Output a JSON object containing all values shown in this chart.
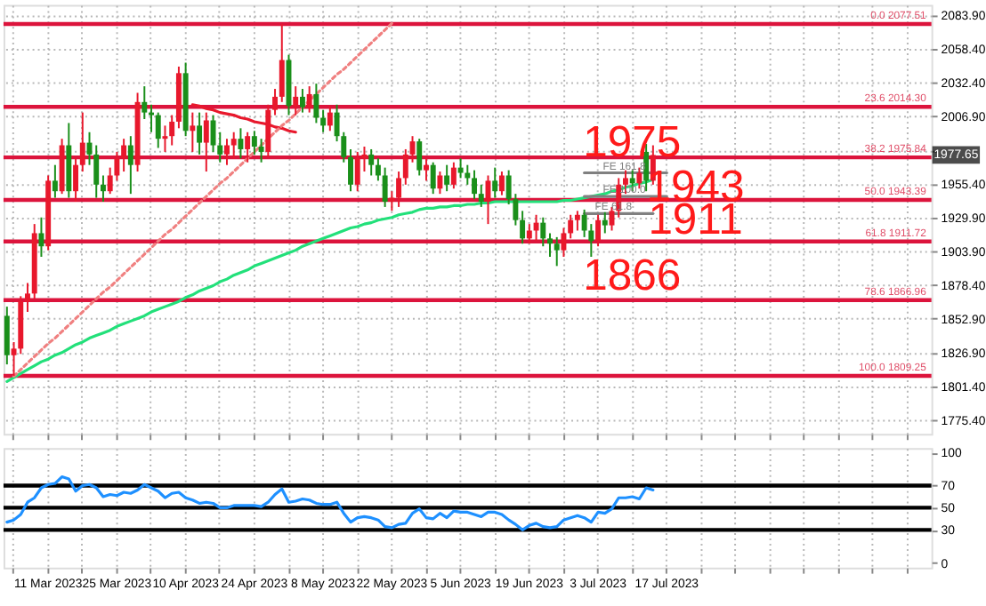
{
  "chart_data": [
    {
      "type": "candlestick",
      "tick_labels": "y",
      "grid": true,
      "categories": [
        null,
        null,
        null,
        null,
        null,
        null,
        null,
        null,
        null,
        null,
        null,
        null,
        null,
        null,
        null,
        null,
        null,
        null,
        null,
        null,
        null,
        null,
        null,
        null,
        null,
        null,
        null,
        null,
        null,
        null,
        null,
        null,
        null,
        null,
        null,
        null,
        null,
        null,
        null,
        null,
        null,
        null,
        null,
        null,
        null,
        null,
        null,
        null,
        null,
        null,
        null,
        null,
        null,
        null,
        null,
        null,
        null,
        null,
        null,
        null,
        null,
        null,
        null,
        null,
        null,
        null,
        null,
        null,
        null,
        null,
        null,
        null,
        null,
        null,
        null,
        null,
        null,
        null,
        null,
        null,
        null,
        null,
        null,
        null,
        null,
        null,
        null,
        null,
        null,
        null,
        null,
        null,
        null,
        null,
        null,
        null,
        null,
        null,
        null,
        null,
        null,
        null,
        null,
        null,
        null,
        null,
        null,
        null,
        null,
        null,
        null,
        null,
        null,
        null,
        null,
        null,
        null,
        null,
        null,
        null,
        null,
        null,
        null,
        null,
        null,
        null,
        null,
        null,
        null,
        null,
        null,
        null,
        null,
        null,
        null
      ],
      "ohlc": [
        [
          1855,
          1862,
          1818,
          1825
        ],
        [
          1825,
          1835,
          1809.25,
          1830
        ],
        [
          1830,
          1870,
          1826,
          1866
        ],
        [
          1866,
          1880,
          1858,
          1872
        ],
        [
          1872,
          1925,
          1868,
          1918
        ],
        [
          1918,
          1930,
          1900,
          1908
        ],
        [
          1908,
          1962,
          1905,
          1958
        ],
        [
          1958,
          1970,
          1945,
          1950
        ],
        [
          1950,
          1990,
          1948,
          1985
        ],
        [
          1985,
          2002,
          1945,
          1950
        ],
        [
          1950,
          1975,
          1942,
          1970
        ],
        [
          1970,
          2010,
          1965,
          1987
        ],
        [
          1987,
          1995,
          1970,
          1978
        ],
        [
          1978,
          1985,
          1945,
          1955
        ],
        [
          1955,
          1962,
          1942,
          1950
        ],
        [
          1950,
          1968,
          1948,
          1962
        ],
        [
          1962,
          1980,
          1958,
          1975
        ],
        [
          1975,
          1990,
          1965,
          1985
        ],
        [
          1985,
          1992,
          1948,
          1970
        ],
        [
          1970,
          2025,
          1965,
          2018
        ],
        [
          2018,
          2030,
          2005,
          2010
        ],
        [
          2010,
          2016,
          1995,
          2008
        ],
        [
          2008,
          2010,
          1983,
          1990
        ],
        [
          1990,
          2000,
          1980,
          1992
        ],
        [
          1992,
          2008,
          1985,
          2003
        ],
        [
          2003,
          2045,
          1998,
          2040
        ],
        [
          2040,
          2048,
          1992,
          1996
        ],
        [
          1996,
          2010,
          1980,
          2000
        ],
        [
          2000,
          2010,
          1978,
          1987
        ],
        [
          1987,
          2010,
          1965,
          2004
        ],
        [
          2004,
          2008,
          1980,
          1985
        ],
        [
          1985,
          1995,
          1972,
          1978
        ],
        [
          1978,
          1990,
          1970,
          1985
        ],
        [
          1985,
          1995,
          1975,
          1990
        ],
        [
          1990,
          1998,
          1975,
          1982
        ],
        [
          1982,
          1995,
          1972,
          1992
        ],
        [
          1992,
          1996,
          1978,
          1984
        ],
        [
          1984,
          1990,
          1972,
          1980
        ],
        [
          1980,
          2016,
          1976,
          2012
        ],
        [
          2012,
          2028,
          2008,
          2022
        ],
        [
          2022,
          2077.51,
          2018,
          2050
        ],
        [
          2050,
          2054,
          2008,
          2015
        ],
        [
          2015,
          2030,
          2008,
          2022
        ],
        [
          2022,
          2028,
          2010,
          2014
        ],
        [
          2014,
          2030,
          2010,
          2024
        ],
        [
          2024,
          2032,
          2002,
          2006
        ],
        [
          2006,
          2012,
          1995,
          2000
        ],
        [
          2000,
          2015,
          1996,
          2010
        ],
        [
          2010,
          2016,
          1988,
          1992
        ],
        [
          1992,
          1995,
          1972,
          1976
        ],
        [
          1976,
          1982,
          1950,
          1955
        ],
        [
          1955,
          1980,
          1950,
          1975
        ],
        [
          1975,
          1984,
          1965,
          1978
        ],
        [
          1978,
          1982,
          1962,
          1970
        ],
        [
          1970,
          1975,
          1958,
          1962
        ],
        [
          1962,
          1968,
          1938,
          1942
        ],
        [
          1942,
          1950,
          1935,
          1945
        ],
        [
          1945,
          1965,
          1938,
          1960
        ],
        [
          1960,
          1982,
          1955,
          1978
        ],
        [
          1978,
          1992,
          1972,
          1988
        ],
        [
          1988,
          1990,
          1962,
          1966
        ],
        [
          1966,
          1975,
          1958,
          1970
        ],
        [
          1970,
          1972,
          1948,
          1952
        ],
        [
          1952,
          1965,
          1948,
          1962
        ],
        [
          1962,
          1970,
          1950,
          1955
        ],
        [
          1955,
          1972,
          1952,
          1968
        ],
        [
          1968,
          1975,
          1960,
          1964
        ],
        [
          1964,
          1970,
          1955,
          1960
        ],
        [
          1960,
          1966,
          1944,
          1948
        ],
        [
          1948,
          1955,
          1938,
          1942
        ],
        [
          1942,
          1962,
          1925,
          1958
        ],
        [
          1958,
          1968,
          1945,
          1950
        ],
        [
          1950,
          1965,
          1947,
          1962
        ],
        [
          1962,
          1966,
          1940,
          1944
        ],
        [
          1944,
          1948,
          1924,
          1928
        ],
        [
          1928,
          1935,
          1910,
          1914
        ],
        [
          1914,
          1925,
          1910,
          1920
        ],
        [
          1920,
          1932,
          1912,
          1926
        ],
        [
          1926,
          1930,
          1908,
          1914
        ],
        [
          1914,
          1918,
          1900,
          1910
        ],
        [
          1910,
          1915,
          1893,
          1905
        ],
        [
          1905,
          1922,
          1900,
          1918
        ],
        [
          1918,
          1932,
          1914,
          1928
        ],
        [
          1928,
          1935,
          1920,
          1932
        ],
        [
          1932,
          1936,
          1915,
          1920
        ],
        [
          1920,
          1925,
          1900,
          1912
        ],
        [
          1912,
          1932,
          1908,
          1928
        ],
        [
          1928,
          1934,
          1918,
          1924
        ],
        [
          1924,
          1938,
          1920,
          1935
        ],
        [
          1935,
          1960,
          1930,
          1955
        ],
        [
          1955,
          1966,
          1948,
          1960
        ],
        [
          1960,
          1966,
          1950,
          1956
        ],
        [
          1956,
          1968,
          1952,
          1964
        ],
        [
          1980,
          1986,
          1950,
          1958
        ],
        [
          1958,
          1985,
          1955,
          1977.65
        ],
        null,
        null,
        null,
        null,
        null,
        null,
        null,
        null,
        null,
        null,
        null,
        null,
        null,
        null,
        null,
        null,
        null,
        null,
        null,
        null,
        null,
        null,
        null,
        null,
        null,
        null,
        null,
        null,
        null,
        null,
        null,
        null,
        null,
        null,
        null,
        null,
        null,
        null,
        null,
        null
      ],
      "colors": [
        "#1a8f1a",
        "#e8182c",
        "#e8182c",
        "#e8182c",
        "#e8182c",
        "#1a8f1a",
        "#e8182c",
        "#1a8f1a",
        "#e8182c",
        "#1a8f1a",
        "#e8182c",
        "#e8182c",
        "#1a8f1a",
        "#1a8f1a",
        "#1a8f1a",
        "#e8182c",
        "#e8182c",
        "#e8182c",
        "#1a8f1a",
        "#e8182c",
        "#1a8f1a",
        "#1a8f1a",
        "#1a8f1a",
        "#e8182c",
        "#e8182c",
        "#e8182c",
        "#1a8f1a",
        "#e8182c",
        "#1a8f1a",
        "#e8182c",
        "#1a8f1a",
        "#1a8f1a",
        "#e8182c",
        "#e8182c",
        "#1a8f1a",
        "#e8182c",
        "#1a8f1a",
        "#1a8f1a",
        "#e8182c",
        "#e8182c",
        "#e8182c",
        "#1a8f1a",
        "#e8182c",
        "#1a8f1a",
        "#e8182c",
        "#1a8f1a",
        "#1a8f1a",
        "#e8182c",
        "#1a8f1a",
        "#1a8f1a",
        "#1a8f1a",
        "#e8182c",
        "#e8182c",
        "#1a8f1a",
        "#1a8f1a",
        "#1a8f1a",
        "#e8182c",
        "#e8182c",
        "#e8182c",
        "#e8182c",
        "#1a8f1a",
        "#e8182c",
        "#1a8f1a",
        "#e8182c",
        "#1a8f1a",
        "#e8182c",
        "#1a8f1a",
        "#1a8f1a",
        "#1a8f1a",
        "#1a8f1a",
        "#e8182c",
        "#1a8f1a",
        "#e8182c",
        "#1a8f1a",
        "#1a8f1a",
        "#1a8f1a",
        "#e8182c",
        "#e8182c",
        "#1a8f1a",
        "#1a8f1a",
        "#1a8f1a",
        "#e8182c",
        "#e8182c",
        "#e8182c",
        "#1a8f1a",
        "#1a8f1a",
        "#e8182c",
        "#1a8f1a",
        "#e8182c",
        "#e8182c",
        "#e8182c",
        "#1a8f1a",
        "#e8182c",
        "#1a8f1a",
        "#e8182c",
        null,
        null,
        null,
        null,
        null,
        null,
        null,
        null,
        null,
        null,
        null,
        null,
        null,
        null,
        null,
        null,
        null,
        null,
        null,
        null,
        null,
        null,
        null,
        null,
        null,
        null,
        null,
        null,
        null,
        null,
        null,
        null,
        null,
        null,
        null,
        null,
        null,
        null,
        null,
        null
      ],
      "ylim": [
        1765,
        2092
      ],
      "yticks": [
        {
          "value": 2083.9,
          "label": "2083.90"
        },
        {
          "value": 2058.4,
          "label": "2058.40"
        },
        {
          "value": 2032.4,
          "label": "2032.40"
        },
        {
          "value": 2006.9,
          "label": "2006.90"
        },
        {
          "value": 1981.4,
          "label": null
        },
        {
          "value": 1955.4,
          "label": "1955.40"
        },
        {
          "value": 1929.9,
          "label": "1929.90"
        },
        {
          "value": 1903.9,
          "label": "1903.90"
        },
        {
          "value": 1878.4,
          "label": "1878.40"
        },
        {
          "value": 1852.9,
          "label": "1852.90"
        },
        {
          "value": 1826.9,
          "label": "1826.90"
        },
        {
          "value": 1801.4,
          "label": "1801.40"
        },
        {
          "value": 1775.4,
          "label": "1775.40"
        }
      ],
      "series": [
        {
          "type": "line",
          "color": "#22e07a",
          "values": [
            1805,
            1808,
            1811,
            1814,
            1817,
            1820,
            1822,
            1825,
            1827,
            1830,
            1833,
            1835,
            1838,
            1840,
            1842,
            1844,
            1847,
            1849,
            1851,
            1853,
            1855,
            1858,
            1860,
            1862,
            1864,
            1866,
            1869,
            1871,
            1874,
            1876,
            1878,
            1881,
            1883,
            1886,
            1888,
            1890,
            1893,
            1895,
            1897,
            1899,
            1901,
            1903,
            1905,
            1908,
            1910,
            1912,
            1914,
            1916,
            1918,
            1920,
            1922,
            1923,
            1925,
            1926,
            1928,
            1929,
            1930,
            1932,
            1933,
            1934,
            1936,
            1937,
            1937,
            1938,
            1938,
            1939,
            1939,
            1940,
            1940,
            1941,
            1941,
            1942,
            1942,
            1942,
            1942,
            1942,
            1942,
            1942,
            1942,
            1942,
            1942,
            1943,
            1943,
            1944,
            1945,
            1946,
            1947,
            1948,
            1950,
            1951,
            1953,
            1954,
            1956,
            1957,
            1959,
            null,
            null,
            null,
            null,
            null,
            null,
            null,
            null,
            null,
            null,
            null,
            null,
            null,
            null,
            null,
            null,
            null,
            null,
            null,
            null,
            null,
            null,
            null,
            null,
            null,
            null,
            null,
            null,
            null,
            null,
            null,
            null,
            null,
            null,
            null,
            null,
            null,
            null,
            null,
            null
          ]
        },
        {
          "type": "line",
          "color": "#e8182c",
          "values": [
            null,
            null,
            null,
            null,
            null,
            null,
            null,
            null,
            null,
            null,
            null,
            null,
            null,
            null,
            null,
            null,
            null,
            null,
            null,
            null,
            null,
            null,
            null,
            null,
            null,
            null,
            null,
            2016,
            2015,
            2013,
            2012,
            2010,
            2009,
            2008,
            2006,
            2005,
            2003,
            2002,
            2001,
            1999,
            1998,
            1996,
            1995,
            null,
            null,
            null,
            null,
            null,
            null,
            null,
            null,
            null,
            null,
            null,
            null,
            null,
            null,
            null,
            null,
            null,
            null,
            null,
            null,
            null,
            null,
            null,
            null,
            null,
            null,
            null,
            null,
            null,
            null,
            null,
            null,
            null,
            null,
            null,
            null,
            null,
            null,
            null,
            null,
            null,
            null,
            null,
            null,
            null,
            null,
            null,
            null,
            null,
            null,
            null,
            null,
            null,
            null,
            null,
            null,
            null,
            null,
            null,
            null,
            null,
            null,
            null,
            null,
            null,
            null,
            null,
            null,
            null,
            null,
            null,
            null,
            null,
            null,
            null,
            null,
            null,
            null,
            null,
            null,
            null,
            null,
            null,
            null,
            null,
            null,
            null,
            null,
            null,
            null,
            null,
            null
          ]
        },
        {
          "type": "line",
          "color": "#f08080",
          "line_style": "dotted",
          "values": [
            null,
            1809,
            1814,
            1819,
            1824,
            1829,
            1834,
            1838,
            1843,
            1848,
            1853,
            1858,
            1863,
            1868,
            1873,
            1877,
            1882,
            1887,
            1892,
            1897,
            1902,
            1907,
            1912,
            1917,
            1921,
            1926,
            1931,
            1936,
            1941,
            1946,
            1951,
            1956,
            1960,
            1965,
            1970,
            1975,
            1980,
            1985,
            1990,
            1995,
            2000,
            2004,
            2009,
            2014,
            2019,
            2024,
            2029,
            2034,
            2039,
            2043,
            2048,
            2053,
            2058,
            2063,
            2068,
            2073,
            2078,
            null,
            null,
            null,
            null,
            null,
            null,
            null,
            null,
            null,
            null,
            null,
            null,
            null,
            null,
            null,
            null,
            null,
            null,
            null,
            null,
            null,
            null,
            null,
            null,
            null,
            null,
            null,
            null,
            null,
            null,
            null,
            null,
            null,
            null,
            null,
            null,
            null,
            null,
            null,
            null,
            null,
            null,
            null,
            null,
            null,
            null,
            null,
            null,
            null,
            null,
            null,
            null,
            null,
            null,
            null,
            null,
            null,
            null,
            null,
            null,
            null,
            null,
            null,
            null,
            null,
            null,
            null,
            null,
            null,
            null,
            null,
            null,
            null,
            null,
            null,
            null,
            null,
            null
          ]
        },
        {
          "type": "line",
          "name": "FE 161.8",
          "color": "#808080",
          "values": [
            null,
            null,
            null,
            null,
            null,
            null,
            null,
            null,
            null,
            null,
            null,
            null,
            null,
            null,
            null,
            null,
            null,
            null,
            null,
            null,
            null,
            null,
            null,
            null,
            null,
            null,
            null,
            null,
            null,
            null,
            null,
            null,
            null,
            null,
            null,
            null,
            null,
            null,
            null,
            null,
            null,
            null,
            null,
            null,
            null,
            null,
            null,
            null,
            null,
            null,
            null,
            null,
            null,
            null,
            null,
            null,
            null,
            null,
            null,
            null,
            null,
            null,
            null,
            null,
            null,
            null,
            null,
            null,
            null,
            null,
            null,
            null,
            null,
            null,
            null,
            null,
            null,
            null,
            null,
            null,
            null,
            null,
            null,
            null,
            1964,
            1964,
            1964,
            1964,
            1964,
            1964,
            1964,
            1964,
            1964,
            1964,
            1964,
            1964,
            1964,
            null,
            null,
            null,
            null,
            null,
            null,
            null,
            null,
            null,
            null,
            null,
            null,
            null,
            null,
            null,
            null,
            null,
            null,
            null,
            null,
            null,
            null,
            null,
            null,
            null,
            null,
            null,
            null,
            null,
            null,
            null,
            null,
            null,
            null,
            null,
            null,
            null,
            null
          ]
        },
        {
          "type": "line",
          "name": "FE 100.0",
          "color": "#808080",
          "values": [
            null,
            null,
            null,
            null,
            null,
            null,
            null,
            null,
            null,
            null,
            null,
            null,
            null,
            null,
            null,
            null,
            null,
            null,
            null,
            null,
            null,
            null,
            null,
            null,
            null,
            null,
            null,
            null,
            null,
            null,
            null,
            null,
            null,
            null,
            null,
            null,
            null,
            null,
            null,
            null,
            null,
            null,
            null,
            null,
            null,
            null,
            null,
            null,
            null,
            null,
            null,
            null,
            null,
            null,
            null,
            null,
            null,
            null,
            null,
            null,
            null,
            null,
            null,
            null,
            null,
            null,
            null,
            null,
            null,
            null,
            null,
            null,
            null,
            null,
            null,
            null,
            null,
            null,
            null,
            null,
            null,
            null,
            null,
            null,
            1946,
            1946,
            1946,
            1946,
            1946,
            1946,
            1946,
            1946,
            1946,
            1946,
            1946,
            1946,
            1946,
            null,
            null,
            null,
            null,
            null,
            null,
            null,
            null,
            null,
            null,
            null,
            null,
            null,
            null,
            null,
            null,
            null,
            null,
            null,
            null,
            null,
            null,
            null,
            null,
            null,
            null,
            null,
            null,
            null,
            null,
            null,
            null,
            null,
            null,
            null,
            null,
            null,
            null
          ]
        },
        {
          "type": "line",
          "name": "FE 61.8",
          "color": "#808080",
          "values": [
            null,
            null,
            null,
            null,
            null,
            null,
            null,
            null,
            null,
            null,
            null,
            null,
            null,
            null,
            null,
            null,
            null,
            null,
            null,
            null,
            null,
            null,
            null,
            null,
            null,
            null,
            null,
            null,
            null,
            null,
            null,
            null,
            null,
            null,
            null,
            null,
            null,
            null,
            null,
            null,
            null,
            null,
            null,
            null,
            null,
            null,
            null,
            null,
            null,
            null,
            null,
            null,
            null,
            null,
            null,
            null,
            null,
            null,
            null,
            null,
            null,
            null,
            null,
            null,
            null,
            null,
            null,
            null,
            null,
            null,
            null,
            null,
            null,
            null,
            null,
            null,
            null,
            null,
            null,
            null,
            null,
            null,
            null,
            null,
            1933,
            1933,
            1933,
            1933,
            1933,
            1933,
            1933,
            1933,
            1933,
            1933,
            1933,
            null,
            null,
            null,
            null,
            null,
            null,
            null,
            null,
            null,
            null,
            null,
            null,
            null,
            null,
            null,
            null,
            null,
            null,
            null,
            null,
            null,
            null,
            null,
            null,
            null,
            null,
            null,
            null,
            null,
            null,
            null,
            null,
            null,
            null,
            null,
            null,
            null,
            null,
            null,
            null
          ]
        }
      ],
      "ref_lines": [
        {
          "axis": "y",
          "value": 2077.51,
          "label": "0.0 2077.51",
          "color": "#dc143c"
        },
        {
          "axis": "y",
          "value": 2014.3,
          "label": "23.6 2014.30",
          "color": "#dc143c"
        },
        {
          "axis": "y",
          "value": 1975.84,
          "label": "38.2 1975.84",
          "color": "#dc143c"
        },
        {
          "axis": "y",
          "value": 1943.39,
          "label": "50.0 1943.39",
          "color": "#dc143c"
        },
        {
          "axis": "y",
          "value": 1911.72,
          "label": "61.8 1911.72",
          "color": "#dc143c"
        },
        {
          "axis": "y",
          "value": 1866.96,
          "label": "78.6 1866.96",
          "color": "#dc143c"
        },
        {
          "axis": "y",
          "value": 1809.25,
          "label": "100.0 1809.25",
          "color": "#dc143c"
        }
      ],
      "annotations": [
        "1975",
        "1943",
        "1911",
        "1866",
        {
          "text": "1977.65",
          "y": 1977.65
        }
      ]
    },
    {
      "type": "line",
      "grid": "x",
      "categories": [
        null,
        null,
        null,
        null,
        null,
        null,
        "11 Mar 2023",
        null,
        null,
        null,
        null,
        null,
        null,
        null,
        null,
        null,
        "25 Mar 2023",
        null,
        null,
        null,
        null,
        null,
        null,
        null,
        null,
        null,
        "10 Apr 2023",
        null,
        null,
        null,
        null,
        null,
        null,
        null,
        null,
        null,
        "24 Apr 2023",
        null,
        null,
        null,
        null,
        null,
        null,
        null,
        null,
        null,
        "8 May 2023",
        null,
        null,
        null,
        null,
        null,
        null,
        null,
        null,
        null,
        "22 May 2023",
        null,
        null,
        null,
        null,
        null,
        null,
        null,
        null,
        null,
        "5 Jun 2023",
        null,
        null,
        null,
        null,
        null,
        null,
        null,
        null,
        null,
        "19 Jun 2023",
        null,
        null,
        null,
        null,
        null,
        null,
        null,
        null,
        null,
        "3 Jul 2023",
        null,
        null,
        null,
        null,
        null,
        null,
        null,
        null,
        null,
        "17 Jul 2023",
        null,
        null,
        null,
        null,
        null,
        null,
        null,
        null,
        null,
        null,
        null,
        null,
        null,
        null,
        null,
        null,
        null,
        null,
        null,
        null,
        null,
        null,
        null,
        null,
        null,
        null,
        null,
        null,
        null,
        null,
        null,
        null,
        null,
        null,
        null,
        null,
        null,
        null
      ],
      "ylim": [
        -4,
        104
      ],
      "yticks": [
        0,
        30,
        50,
        70,
        100
      ],
      "series": [
        {
          "color": "#1e90ff",
          "values": [
            37,
            39,
            44,
            55,
            59,
            68,
            71,
            72,
            78,
            76,
            65,
            70,
            71,
            68,
            60,
            62,
            61,
            64,
            63,
            66,
            71,
            68,
            65,
            59,
            63,
            64,
            59,
            57,
            54,
            55,
            54,
            50,
            50,
            52,
            52,
            52,
            52,
            51,
            55,
            62,
            67,
            55,
            56,
            58,
            57,
            54,
            53,
            53,
            55,
            45,
            37,
            41,
            42,
            41,
            39,
            33,
            32,
            35,
            36,
            45,
            49,
            41,
            40,
            45,
            41,
            47,
            46,
            46,
            44,
            42,
            46,
            46,
            44,
            39,
            35,
            30,
            34,
            36,
            33,
            32,
            33,
            39,
            41,
            43,
            41,
            37,
            46,
            45,
            49,
            59,
            59,
            60,
            58,
            68,
            66,
            null,
            null,
            null,
            null,
            null,
            null,
            null,
            null,
            null,
            null,
            null,
            null,
            null,
            null,
            null,
            null,
            null,
            null,
            null,
            null,
            null,
            null,
            null,
            null,
            null,
            null,
            null,
            null,
            null,
            null,
            null,
            null,
            null,
            null,
            null,
            null,
            null,
            null,
            null,
            null
          ]
        }
      ],
      "ref_lines": [
        {
          "axis": "y",
          "value": 70,
          "color": "#000000"
        },
        {
          "axis": "y",
          "value": 50,
          "color": "#000000"
        },
        {
          "axis": "y",
          "value": 30,
          "color": "#000000"
        }
      ]
    }
  ]
}
